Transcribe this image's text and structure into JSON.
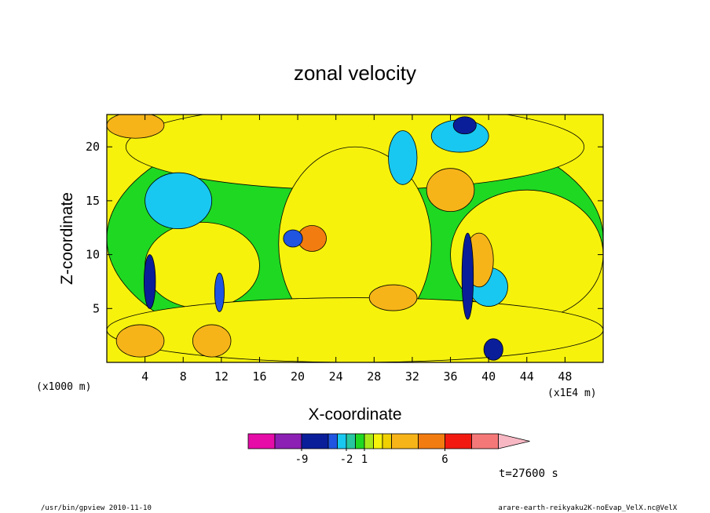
{
  "chart_data": {
    "type": "heatmap",
    "title": "zonal velocity",
    "xlabel": "X-coordinate",
    "ylabel": "Z-coordinate",
    "x_unit_left": "(x1000 m)",
    "x_unit_right": "(x1E4 m)",
    "xlim": [
      0,
      52
    ],
    "ylim": [
      0,
      23
    ],
    "x_ticks": [
      4,
      8,
      12,
      16,
      20,
      24,
      28,
      32,
      36,
      40,
      44,
      48
    ],
    "y_ticks": [
      5,
      10,
      15,
      20
    ],
    "colorbar": {
      "colors": [
        "#e60ca8",
        "#8c1fb4",
        "#0a1e9a",
        "#1f55e0",
        "#18c8f0",
        "#27c6a0",
        "#1fd822",
        "#a8e81a",
        "#f6f20c",
        "#f0d000",
        "#f6b418",
        "#f27c10",
        "#f21a10",
        "#f57878",
        "#f7b8c4"
      ],
      "tick_labels": [
        "-9",
        "-2",
        "1",
        "6"
      ],
      "tick_after_index": [
        1,
        4,
        6,
        11
      ]
    },
    "time_label": "t=27600 s",
    "footer_left": "/usr/bin/gpview   2010-11-10",
    "footer_right": "arare-earth-reikyaku2K-noEvap_VelX.nc@VelX",
    "regions": [
      {
        "type": "ellipse",
        "cx": 26,
        "cy": 11.5,
        "rx": 26,
        "ry": 11.5,
        "color": "#1fd822"
      },
      {
        "type": "ellipse",
        "cx": 26,
        "cy": 20,
        "rx": 24,
        "ry": 4,
        "color": "#f6f20c"
      },
      {
        "type": "ellipse",
        "cx": 26,
        "cy": 11,
        "rx": 8,
        "ry": 9,
        "color": "#f6f20c"
      },
      {
        "type": "ellipse",
        "cx": 10,
        "cy": 9,
        "rx": 6,
        "ry": 4,
        "color": "#f6f20c"
      },
      {
        "type": "ellipse",
        "cx": 44,
        "cy": 10,
        "rx": 8,
        "ry": 6,
        "color": "#f6f20c"
      },
      {
        "type": "ellipse",
        "cx": 26,
        "cy": 3,
        "rx": 26,
        "ry": 3,
        "color": "#f6f20c"
      },
      {
        "type": "ellipse",
        "cx": 7.5,
        "cy": 15,
        "rx": 3.5,
        "ry": 2.6,
        "color": "#18c8f0"
      },
      {
        "type": "ellipse",
        "cx": 37,
        "cy": 21,
        "rx": 3,
        "ry": 1.5,
        "color": "#18c8f0"
      },
      {
        "type": "ellipse",
        "cx": 31,
        "cy": 19,
        "rx": 1.5,
        "ry": 2.5,
        "color": "#18c8f0"
      },
      {
        "type": "ellipse",
        "cx": 40,
        "cy": 7,
        "rx": 2,
        "ry": 1.8,
        "color": "#18c8f0"
      },
      {
        "type": "ellipse",
        "cx": 3,
        "cy": 22,
        "rx": 3,
        "ry": 1.2,
        "color": "#f6b418"
      },
      {
        "type": "ellipse",
        "cx": 36,
        "cy": 16,
        "rx": 2.5,
        "ry": 2,
        "color": "#f6b418"
      },
      {
        "type": "ellipse",
        "cx": 39,
        "cy": 9.5,
        "rx": 1.5,
        "ry": 2.5,
        "color": "#f6b418"
      },
      {
        "type": "ellipse",
        "cx": 30,
        "cy": 6,
        "rx": 2.5,
        "ry": 1.2,
        "color": "#f6b418"
      },
      {
        "type": "ellipse",
        "cx": 21.5,
        "cy": 11.5,
        "rx": 1.5,
        "ry": 1.2,
        "color": "#f27c10"
      },
      {
        "type": "ellipse",
        "cx": 19.5,
        "cy": 11.5,
        "rx": 1,
        "ry": 0.8,
        "color": "#1f55e0"
      },
      {
        "type": "ellipse",
        "cx": 37.5,
        "cy": 22,
        "rx": 1.2,
        "ry": 0.8,
        "color": "#0a1e9a"
      },
      {
        "type": "ellipse",
        "cx": 4.5,
        "cy": 7.5,
        "rx": 0.6,
        "ry": 2.5,
        "color": "#0a1e9a"
      },
      {
        "type": "ellipse",
        "cx": 11.8,
        "cy": 6.5,
        "rx": 0.5,
        "ry": 1.8,
        "color": "#1f55e0"
      },
      {
        "type": "ellipse",
        "cx": 37.8,
        "cy": 8,
        "rx": 0.6,
        "ry": 4,
        "color": "#0a1e9a"
      },
      {
        "type": "ellipse",
        "cx": 3.5,
        "cy": 2,
        "rx": 2.5,
        "ry": 1.5,
        "color": "#f6b418"
      },
      {
        "type": "ellipse",
        "cx": 11,
        "cy": 2,
        "rx": 2,
        "ry": 1.5,
        "color": "#f6b418"
      },
      {
        "type": "ellipse",
        "cx": 40.5,
        "cy": 1.2,
        "rx": 1,
        "ry": 1,
        "color": "#0a1e9a"
      }
    ]
  }
}
